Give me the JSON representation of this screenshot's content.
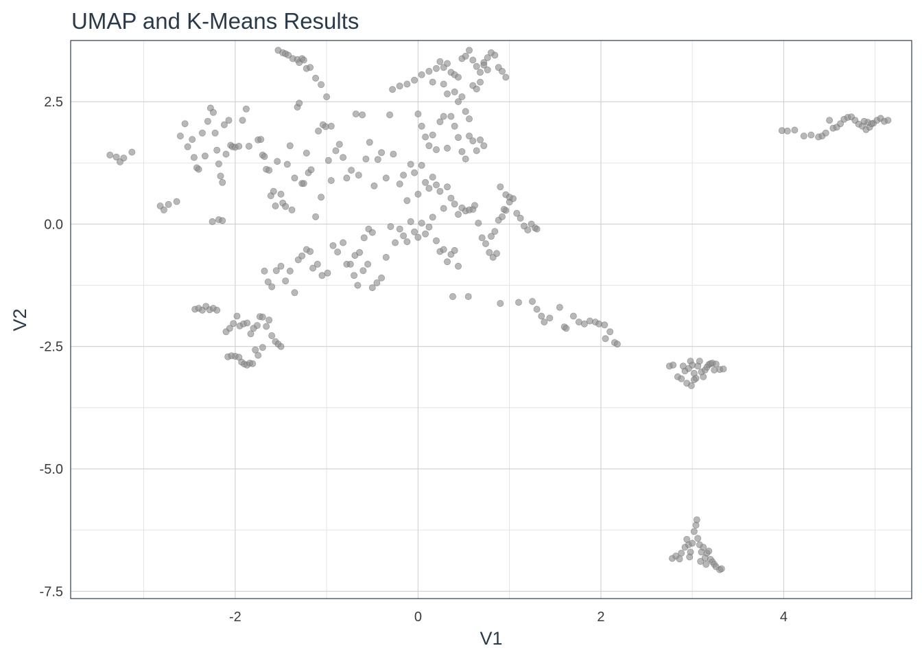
{
  "chart_data": {
    "type": "scatter",
    "title": "UMAP and K-Means Results",
    "xlabel": "V1",
    "ylabel": "V2",
    "xlim": [
      -3.8,
      5.4
    ],
    "ylim": [
      -7.65,
      3.75
    ],
    "x_ticks": [
      -2,
      0,
      2,
      4
    ],
    "x_tick_labels": [
      "-2",
      "0",
      "2",
      "4"
    ],
    "y_ticks": [
      2.5,
      0.0,
      -2.5,
      -5.0,
      -7.5
    ],
    "y_tick_labels": [
      "2.5",
      "0.0",
      "-2.5",
      "-5.0",
      "-7.5"
    ],
    "grid": true,
    "point_color": "#8c8c8c",
    "background": "#ffffff",
    "points": [
      [
        -3.37,
        1.41
      ],
      [
        -3.3,
        1.37
      ],
      [
        -3.26,
        1.27
      ],
      [
        -3.22,
        1.35
      ],
      [
        -3.13,
        1.47
      ],
      [
        -2.82,
        0.37
      ],
      [
        -2.78,
        0.29
      ],
      [
        -2.73,
        0.4
      ],
      [
        -2.64,
        0.46
      ],
      [
        -2.6,
        1.8
      ],
      [
        -2.55,
        2.05
      ],
      [
        -2.52,
        1.58
      ],
      [
        -2.47,
        1.73
      ],
      [
        -2.45,
        1.36
      ],
      [
        -2.42,
        1.15
      ],
      [
        -2.4,
        1.12
      ],
      [
        -2.36,
        1.86
      ],
      [
        -2.33,
        1.39
      ],
      [
        -2.3,
        2.1
      ],
      [
        -2.27,
        2.37
      ],
      [
        -2.24,
        2.28
      ],
      [
        -2.22,
        1.86
      ],
      [
        -2.2,
        1.51
      ],
      [
        -2.18,
        1.23
      ],
      [
        -2.16,
        0.98
      ],
      [
        -2.14,
        0.85
      ],
      [
        -2.12,
        2.03
      ],
      [
        -2.1,
        1.43
      ],
      [
        -2.07,
        2.12
      ],
      [
        -2.05,
        1.61
      ],
      [
        -2.03,
        1.58
      ],
      [
        -2.0,
        1.57
      ],
      [
        -1.96,
        1.59
      ],
      [
        -1.92,
        2.12
      ],
      [
        -1.88,
        2.35
      ],
      [
        -1.85,
        1.59
      ],
      [
        -2.25,
        0.05
      ],
      [
        -2.18,
        0.09
      ],
      [
        -2.14,
        0.07
      ],
      [
        -1.75,
        1.72
      ],
      [
        -1.72,
        1.73
      ],
      [
        -1.7,
        1.41
      ],
      [
        -1.68,
        1.38
      ],
      [
        -1.66,
        1.12
      ],
      [
        -1.63,
        1.1
      ],
      [
        -1.61,
        0.58
      ],
      [
        -1.58,
        0.67
      ],
      [
        -1.56,
        0.37
      ],
      [
        -1.54,
        1.28
      ],
      [
        -1.5,
        0.61
      ],
      [
        -1.48,
        0.43
      ],
      [
        -1.45,
        0.36
      ],
      [
        -1.43,
        1.22
      ],
      [
        -1.4,
        1.6
      ],
      [
        -1.38,
        0.29
      ],
      [
        -1.35,
        0.94
      ],
      [
        -1.32,
        2.39
      ],
      [
        -1.3,
        2.47
      ],
      [
        -1.27,
        0.83
      ],
      [
        -1.25,
        0.83
      ],
      [
        -1.22,
        1.45
      ],
      [
        -1.2,
        1.05
      ],
      [
        -1.17,
        1.11
      ],
      [
        -1.12,
        0.15
      ],
      [
        -1.09,
        1.9
      ],
      [
        -1.06,
        0.55
      ],
      [
        -1.04,
        2.03
      ],
      [
        -1.01,
        1.99
      ],
      [
        -0.98,
        1.3
      ],
      [
        -0.95,
        0.89
      ],
      [
        -0.9,
        1.5
      ],
      [
        -0.86,
        1.63
      ],
      [
        -0.82,
        1.36
      ],
      [
        -0.78,
        0.94
      ],
      [
        -0.73,
        1.1
      ],
      [
        -0.68,
        2.25
      ],
      [
        -0.65,
        1.0
      ],
      [
        -0.61,
        2.23
      ],
      [
        -0.57,
        1.33
      ],
      [
        -0.53,
        1.67
      ],
      [
        -0.48,
        0.78
      ],
      [
        -0.44,
        1.32
      ],
      [
        -0.4,
        1.46
      ],
      [
        -0.35,
        0.94
      ],
      [
        -0.31,
        2.23
      ],
      [
        -0.27,
        1.43
      ],
      [
        -1.53,
        3.55
      ],
      [
        -1.48,
        3.5
      ],
      [
        -1.45,
        3.48
      ],
      [
        -1.42,
        3.45
      ],
      [
        -1.37,
        3.38
      ],
      [
        -1.32,
        3.36
      ],
      [
        -1.3,
        3.3
      ],
      [
        -1.27,
        3.38
      ],
      [
        -1.25,
        3.35
      ],
      [
        -1.22,
        3.18
      ],
      [
        -1.18,
        3.2
      ],
      [
        -1.12,
        2.98
      ],
      [
        -1.06,
        2.85
      ],
      [
        -1.0,
        2.6
      ],
      [
        -0.95,
        2.0
      ],
      [
        -1.68,
        -0.96
      ],
      [
        -1.64,
        -1.18
      ],
      [
        -1.6,
        -1.28
      ],
      [
        -1.55,
        -0.95
      ],
      [
        -1.5,
        -0.86
      ],
      [
        -1.45,
        -1.16
      ],
      [
        -1.4,
        -0.96
      ],
      [
        -1.35,
        -1.4
      ],
      [
        -1.31,
        -0.73
      ],
      [
        -1.27,
        -0.65
      ],
      [
        -1.22,
        -0.52
      ],
      [
        -1.18,
        -0.56
      ],
      [
        -1.15,
        -0.9
      ],
      [
        -1.1,
        -0.82
      ],
      [
        -1.05,
        -1.05
      ],
      [
        -0.99,
        -1.0
      ],
      [
        -0.93,
        -0.44
      ],
      [
        -0.88,
        -0.57
      ],
      [
        -0.82,
        -0.38
      ],
      [
        -0.78,
        -0.82
      ],
      [
        -0.74,
        -0.82
      ],
      [
        -0.69,
        -0.64
      ],
      [
        -0.64,
        -0.58
      ],
      [
        -0.59,
        -0.28
      ],
      [
        -0.54,
        -0.1
      ],
      [
        -0.5,
        -0.17
      ],
      [
        -2.44,
        -1.74
      ],
      [
        -2.4,
        -1.72
      ],
      [
        -2.36,
        -1.76
      ],
      [
        -2.32,
        -1.68
      ],
      [
        -2.28,
        -1.75
      ],
      [
        -2.24,
        -1.72
      ],
      [
        -2.2,
        -1.76
      ],
      [
        -2.1,
        -2.2
      ],
      [
        -2.06,
        -2.13
      ],
      [
        -2.02,
        -2.03
      ],
      [
        -1.98,
        -1.88
      ],
      [
        -1.95,
        -2.08
      ],
      [
        -1.91,
        -2.04
      ],
      [
        -1.87,
        -2.02
      ],
      [
        -1.83,
        -2.24
      ],
      [
        -1.8,
        -2.13
      ],
      [
        -1.76,
        -2.07
      ],
      [
        -1.73,
        -1.89
      ],
      [
        -1.7,
        -1.9
      ],
      [
        -1.66,
        -2.09
      ],
      [
        -1.63,
        -1.96
      ],
      [
        -1.6,
        -2.28
      ],
      [
        -1.56,
        -2.4
      ],
      [
        -1.53,
        -2.45
      ],
      [
        -1.5,
        -2.5
      ],
      [
        -2.08,
        -2.71
      ],
      [
        -2.04,
        -2.69
      ],
      [
        -2.0,
        -2.7
      ],
      [
        -1.96,
        -2.72
      ],
      [
        -1.93,
        -2.82
      ],
      [
        -1.9,
        -2.86
      ],
      [
        -1.87,
        -2.88
      ],
      [
        -1.84,
        -2.84
      ],
      [
        -1.81,
        -2.85
      ],
      [
        -1.78,
        -2.57
      ],
      [
        -1.75,
        -2.68
      ],
      [
        -1.7,
        -2.52
      ],
      [
        -0.2,
        0.82
      ],
      [
        -0.16,
        1.0
      ],
      [
        -0.12,
        0.48
      ],
      [
        -0.08,
        1.22
      ],
      [
        -0.04,
        1.05
      ],
      [
        0.0,
        0.61
      ],
      [
        0.04,
        1.2
      ],
      [
        0.08,
        0.85
      ],
      [
        0.12,
        0.73
      ],
      [
        0.16,
        0.96
      ],
      [
        0.2,
        0.8
      ],
      [
        0.24,
        0.67
      ],
      [
        0.28,
        0.32
      ],
      [
        0.32,
        0.76
      ],
      [
        0.36,
        0.53
      ],
      [
        0.4,
        0.41
      ],
      [
        0.44,
        0.2
      ],
      [
        0.48,
        0.33
      ],
      [
        0.52,
        0.27
      ],
      [
        0.56,
        0.29
      ],
      [
        0.6,
        0.3
      ],
      [
        -0.3,
        -0.05
      ],
      [
        -0.25,
        -0.38
      ],
      [
        -0.2,
        -0.1
      ],
      [
        -0.16,
        -0.24
      ],
      [
        -0.12,
        -0.36
      ],
      [
        -0.08,
        0.05
      ],
      [
        -0.04,
        -0.16
      ],
      [
        0.0,
        -0.27
      ],
      [
        0.04,
        0.02
      ],
      [
        0.08,
        -0.2
      ],
      [
        0.12,
        -0.06
      ],
      [
        0.16,
        0.14
      ],
      [
        0.2,
        -0.34
      ],
      [
        0.24,
        -0.56
      ],
      [
        0.28,
        -0.52
      ],
      [
        0.32,
        -0.77
      ],
      [
        0.36,
        -0.62
      ],
      [
        0.4,
        -0.54
      ],
      [
        0.44,
        -0.86
      ],
      [
        -0.7,
        -1.05
      ],
      [
        -0.66,
        -1.25
      ],
      [
        -0.6,
        -0.95
      ],
      [
        -0.55,
        -0.82
      ],
      [
        -0.5,
        -1.3
      ],
      [
        -0.45,
        -1.2
      ],
      [
        -0.4,
        -1.1
      ],
      [
        -0.35,
        -0.68
      ],
      [
        0.0,
        2.25
      ],
      [
        0.04,
        2.0
      ],
      [
        0.08,
        1.78
      ],
      [
        0.12,
        1.6
      ],
      [
        0.16,
        1.82
      ],
      [
        0.2,
        1.52
      ],
      [
        0.24,
        2.09
      ],
      [
        0.28,
        2.2
      ],
      [
        0.32,
        1.55
      ],
      [
        0.36,
        2.2
      ],
      [
        0.4,
        2.0
      ],
      [
        0.44,
        1.77
      ],
      [
        0.48,
        1.48
      ],
      [
        0.52,
        1.33
      ],
      [
        0.56,
        1.8
      ],
      [
        0.6,
        1.7
      ],
      [
        0.64,
        1.5
      ],
      [
        0.68,
        1.72
      ],
      [
        0.72,
        1.6
      ],
      [
        -0.28,
        2.75
      ],
      [
        -0.2,
        2.82
      ],
      [
        -0.12,
        2.86
      ],
      [
        -0.04,
        2.94
      ],
      [
        0.04,
        3.05
      ],
      [
        0.12,
        3.12
      ],
      [
        0.16,
        2.9
      ],
      [
        0.2,
        3.18
      ],
      [
        0.24,
        3.32
      ],
      [
        0.28,
        3.2
      ],
      [
        0.32,
        3.28
      ],
      [
        0.36,
        3.1
      ],
      [
        0.4,
        3.05
      ],
      [
        0.44,
        3.0
      ],
      [
        0.48,
        3.38
      ],
      [
        0.52,
        3.43
      ],
      [
        0.56,
        3.55
      ],
      [
        0.6,
        3.35
      ],
      [
        0.64,
        3.22
      ],
      [
        0.68,
        3.1
      ],
      [
        0.72,
        3.3
      ],
      [
        0.76,
        3.4
      ],
      [
        0.8,
        3.5
      ],
      [
        0.84,
        3.45
      ],
      [
        0.88,
        3.2
      ],
      [
        0.92,
        3.12
      ],
      [
        0.96,
        3.0
      ],
      [
        0.4,
        2.7
      ],
      [
        0.44,
        2.5
      ],
      [
        0.48,
        2.6
      ],
      [
        0.52,
        2.3
      ],
      [
        0.56,
        2.15
      ],
      [
        0.6,
        2.83
      ],
      [
        0.64,
        2.76
      ],
      [
        0.68,
        2.9
      ],
      [
        0.72,
        3.25
      ],
      [
        0.76,
        3.15
      ],
      [
        0.28,
        2.86
      ],
      [
        0.32,
        2.66
      ],
      [
        0.62,
        0.38
      ],
      [
        0.66,
        0.02
      ],
      [
        0.7,
        -0.28
      ],
      [
        0.74,
        -0.4
      ],
      [
        0.78,
        -0.58
      ],
      [
        0.82,
        -0.68
      ],
      [
        0.86,
        -0.6
      ],
      [
        0.8,
        -0.25
      ],
      [
        0.84,
        -0.15
      ],
      [
        0.88,
        0.08
      ],
      [
        0.92,
        0.15
      ],
      [
        0.96,
        0.28
      ],
      [
        1.0,
        0.45
      ],
      [
        1.04,
        0.52
      ],
      [
        1.08,
        0.22
      ],
      [
        1.12,
        0.12
      ],
      [
        1.16,
        -0.04
      ],
      [
        1.2,
        -0.12
      ],
      [
        1.24,
        0.0
      ],
      [
        1.28,
        -0.08
      ],
      [
        1.3,
        -0.1
      ],
      [
        0.9,
        0.76
      ],
      [
        0.96,
        0.6
      ],
      [
        1.0,
        0.55
      ],
      [
        0.94,
        0.3
      ],
      [
        0.38,
        -1.48
      ],
      [
        0.55,
        -1.48
      ],
      [
        0.9,
        -1.62
      ],
      [
        1.1,
        -1.6
      ],
      [
        1.25,
        -1.58
      ],
      [
        1.3,
        -1.74
      ],
      [
        1.35,
        -1.88
      ],
      [
        1.38,
        -2.0
      ],
      [
        1.44,
        -1.92
      ],
      [
        1.55,
        -1.7
      ],
      [
        1.6,
        -2.1
      ],
      [
        1.62,
        -2.13
      ],
      [
        1.7,
        -1.88
      ],
      [
        1.76,
        -2.0
      ],
      [
        1.82,
        -2.04
      ],
      [
        1.88,
        -1.98
      ],
      [
        1.94,
        -2.0
      ],
      [
        1.98,
        -2.04
      ],
      [
        2.04,
        -2.06
      ],
      [
        2.05,
        -2.34
      ],
      [
        2.1,
        -2.2
      ],
      [
        2.15,
        -2.42
      ],
      [
        2.18,
        -2.45
      ],
      [
        2.75,
        -2.9
      ],
      [
        2.79,
        -2.88
      ],
      [
        2.84,
        -3.12
      ],
      [
        2.88,
        -3.16
      ],
      [
        2.92,
        -3.0
      ],
      [
        2.94,
        -3.25
      ],
      [
        2.96,
        -2.95
      ],
      [
        2.98,
        -2.8
      ],
      [
        3.0,
        -2.88
      ],
      [
        3.02,
        -3.05
      ],
      [
        3.04,
        -3.15
      ],
      [
        3.06,
        -2.9
      ],
      [
        3.08,
        -2.8
      ],
      [
        3.1,
        -3.02
      ],
      [
        3.12,
        -3.12
      ],
      [
        3.14,
        -2.98
      ],
      [
        3.16,
        -2.92
      ],
      [
        3.18,
        -2.87
      ],
      [
        3.2,
        -2.85
      ],
      [
        3.22,
        -2.84
      ],
      [
        3.26,
        -2.86
      ],
      [
        3.3,
        -2.97
      ],
      [
        2.99,
        -3.3
      ],
      [
        3.02,
        -3.18
      ],
      [
        2.9,
        -2.9
      ],
      [
        3.24,
        -2.98
      ],
      [
        3.34,
        -2.96
      ],
      [
        2.78,
        -6.83
      ],
      [
        2.82,
        -6.78
      ],
      [
        2.86,
        -6.84
      ],
      [
        2.88,
        -6.72
      ],
      [
        2.92,
        -6.6
      ],
      [
        2.94,
        -6.44
      ],
      [
        2.96,
        -6.55
      ],
      [
        2.98,
        -6.7
      ],
      [
        3.0,
        -6.52
      ],
      [
        3.02,
        -6.28
      ],
      [
        3.04,
        -6.15
      ],
      [
        3.06,
        -6.42
      ],
      [
        3.08,
        -6.55
      ],
      [
        3.1,
        -6.7
      ],
      [
        3.12,
        -6.6
      ],
      [
        3.14,
        -6.82
      ],
      [
        3.16,
        -6.72
      ],
      [
        3.18,
        -6.68
      ],
      [
        3.2,
        -6.85
      ],
      [
        3.22,
        -6.9
      ],
      [
        3.24,
        -6.95
      ],
      [
        3.26,
        -7.0
      ],
      [
        3.3,
        -7.06
      ],
      [
        3.32,
        -7.04
      ],
      [
        3.05,
        -6.04
      ],
      [
        2.97,
        -6.8
      ],
      [
        3.09,
        -6.89
      ],
      [
        3.15,
        -6.95
      ],
      [
        3.98,
        1.91
      ],
      [
        4.04,
        1.9
      ],
      [
        4.12,
        1.92
      ],
      [
        4.22,
        1.8
      ],
      [
        4.3,
        1.82
      ],
      [
        4.38,
        1.78
      ],
      [
        4.42,
        1.8
      ],
      [
        4.46,
        1.86
      ],
      [
        4.5,
        2.12
      ],
      [
        4.54,
        1.96
      ],
      [
        4.58,
        1.98
      ],
      [
        4.62,
        2.05
      ],
      [
        4.66,
        2.14
      ],
      [
        4.7,
        2.18
      ],
      [
        4.74,
        2.19
      ],
      [
        4.78,
        2.12
      ],
      [
        4.82,
        2.04
      ],
      [
        4.86,
        2.0
      ],
      [
        4.9,
        1.93
      ],
      [
        4.94,
        1.98
      ],
      [
        4.98,
        2.06
      ],
      [
        5.02,
        2.12
      ],
      [
        5.06,
        2.16
      ],
      [
        5.1,
        2.1
      ],
      [
        5.14,
        2.12
      ],
      [
        4.92,
        2.08
      ],
      [
        4.88,
        2.1
      ],
      [
        4.96,
        2.05
      ]
    ]
  }
}
